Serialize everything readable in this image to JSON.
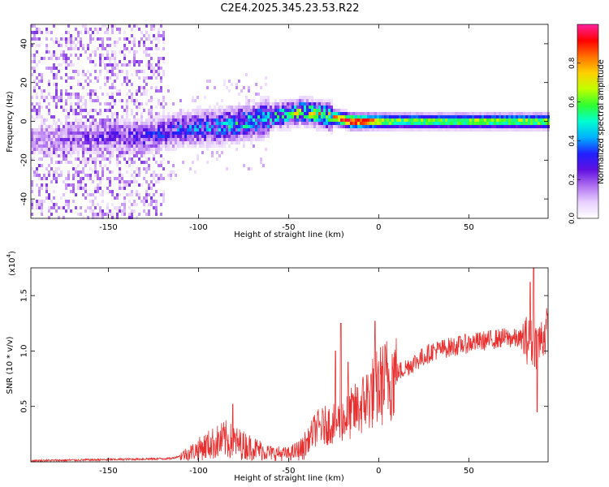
{
  "title": "C2E4.2025.345.23.53.R22",
  "colors": {
    "signal": "#e83030",
    "axis": "#000000",
    "background": "#ffffff",
    "colormap": [
      "#ffffff",
      "#e8d0ff",
      "#b070f0",
      "#6010e0",
      "#2020ff",
      "#00b0ff",
      "#00ffd0",
      "#30ff30",
      "#c0ff00",
      "#ffd000",
      "#ff7000",
      "#ff0000",
      "#ff20a0"
    ]
  },
  "chart_data": [
    {
      "type": "heatmap",
      "name": "spectrogram",
      "xlabel": "Height of straight line (km)",
      "ylabel": "Frequency (Hz)",
      "xlim": [
        -193,
        94
      ],
      "ylim": [
        -50,
        50
      ],
      "xticks": [
        -150,
        -100,
        -50,
        0,
        50
      ],
      "yticks": [
        -40,
        -20,
        0,
        20,
        40
      ],
      "colorbar": {
        "label": "Normalized spectral amplitude",
        "range": [
          0.0,
          1.0
        ],
        "ticks": [
          0.0,
          0.2,
          0.4,
          0.6,
          0.8
        ]
      },
      "ridge_frequency_hz": [
        {
          "x": -190,
          "f": -10
        },
        {
          "x": -160,
          "f": -8
        },
        {
          "x": -130,
          "f": -8
        },
        {
          "x": -110,
          "f": -4
        },
        {
          "x": -90,
          "f": -3
        },
        {
          "x": -70,
          "f": 0
        },
        {
          "x": -55,
          "f": 3
        },
        {
          "x": -42,
          "f": 5
        },
        {
          "x": -30,
          "f": 3
        },
        {
          "x": -15,
          "f": 0
        },
        {
          "x": 0,
          "f": 0
        },
        {
          "x": 94,
          "f": 0
        }
      ],
      "peak_amplitude": [
        {
          "x": -190,
          "a": 0.15
        },
        {
          "x": -120,
          "a": 0.3
        },
        {
          "x": -80,
          "a": 0.45
        },
        {
          "x": -50,
          "a": 0.55
        },
        {
          "x": -30,
          "a": 0.7
        },
        {
          "x": -15,
          "a": 0.95
        },
        {
          "x": 10,
          "a": 0.6
        },
        {
          "x": 94,
          "a": 0.65
        }
      ]
    },
    {
      "type": "line",
      "name": "snr",
      "xlabel": "Height of straight line (km)",
      "ylabel": "SNR (10 * v/v)",
      "multiplier_label": "(x10",
      "multiplier_exp": "4",
      "multiplier_close": ")",
      "xlim": [
        -193,
        94
      ],
      "ylim": [
        0,
        1.75
      ],
      "xticks": [
        -150,
        -100,
        -50,
        0,
        50
      ],
      "yticks": [
        0.5,
        1.0,
        1.5
      ],
      "envelope": [
        {
          "x": -193,
          "y": 0.01
        },
        {
          "x": -150,
          "y": 0.02
        },
        {
          "x": -115,
          "y": 0.03
        },
        {
          "x": -105,
          "y": 0.08
        },
        {
          "x": -95,
          "y": 0.15
        },
        {
          "x": -85,
          "y": 0.2
        },
        {
          "x": -75,
          "y": 0.15
        },
        {
          "x": -60,
          "y": 0.08
        },
        {
          "x": -50,
          "y": 0.07
        },
        {
          "x": -42,
          "y": 0.12
        },
        {
          "x": -35,
          "y": 0.3
        },
        {
          "x": -25,
          "y": 0.35
        },
        {
          "x": -18,
          "y": 0.4
        },
        {
          "x": -10,
          "y": 0.5
        },
        {
          "x": -5,
          "y": 0.6
        },
        {
          "x": 5,
          "y": 0.75
        },
        {
          "x": 15,
          "y": 0.85
        },
        {
          "x": 30,
          "y": 1.0
        },
        {
          "x": 50,
          "y": 1.07
        },
        {
          "x": 70,
          "y": 1.12
        },
        {
          "x": 82,
          "y": 1.1
        },
        {
          "x": 88,
          "y": 1.05
        },
        {
          "x": 94,
          "y": 1.2
        }
      ],
      "spikes": [
        {
          "x": -81,
          "y": 0.52
        },
        {
          "x": -24,
          "y": 1.0
        },
        {
          "x": -21,
          "y": 1.25
        },
        {
          "x": -17,
          "y": 0.9
        },
        {
          "x": -2,
          "y": 1.27
        },
        {
          "x": 84,
          "y": 1.62
        },
        {
          "x": 86,
          "y": 1.75
        },
        {
          "x": 88,
          "y": 0.45
        }
      ]
    }
  ]
}
